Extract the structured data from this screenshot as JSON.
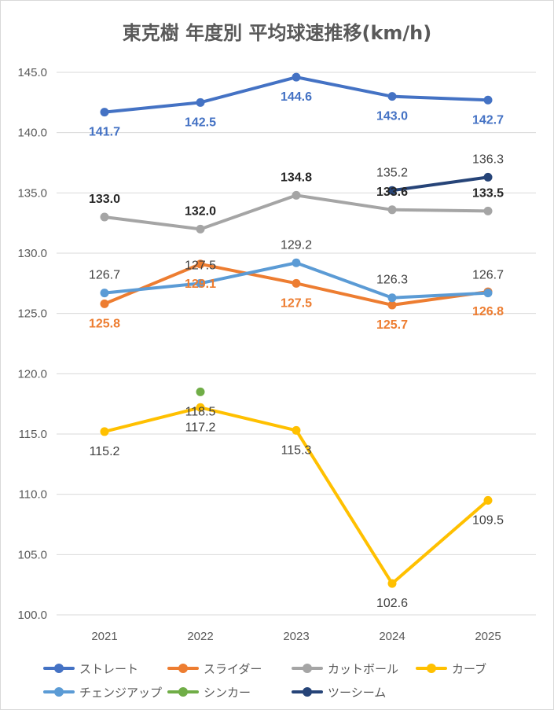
{
  "chart_data": {
    "type": "line",
    "title": "東克樹 年度別 平均球速推移(km/h)",
    "xlabel": "",
    "ylabel": "",
    "categories": [
      "2021",
      "2022",
      "2023",
      "2024",
      "2025"
    ],
    "ylim": [
      100.0,
      145.0
    ],
    "yticks": [
      "100.0",
      "105.0",
      "110.0",
      "115.0",
      "120.0",
      "125.0",
      "130.0",
      "135.0",
      "140.0",
      "145.0"
    ],
    "grid": true,
    "legend_position": "bottom",
    "series": [
      {
        "name": "ストレート",
        "color": "#4472c4",
        "label_color": "#4472c4",
        "label_pos": "below",
        "bold": true,
        "values": [
          141.7,
          142.5,
          144.6,
          143.0,
          142.7
        ]
      },
      {
        "name": "スライダー",
        "color": "#ed7d31",
        "label_color": "#ed7d31",
        "label_pos": "below",
        "bold": true,
        "values": [
          125.8,
          129.1,
          127.5,
          125.7,
          126.8
        ]
      },
      {
        "name": "カットボール",
        "color": "#a5a5a5",
        "label_color": "#262626",
        "label_pos": "above",
        "bold": true,
        "values": [
          133.0,
          132.0,
          134.8,
          133.6,
          133.5
        ]
      },
      {
        "name": "カーブ",
        "color": "#ffc000",
        "label_color": "#404040",
        "label_pos": "below",
        "bold": false,
        "values": [
          115.2,
          117.2,
          115.3,
          102.6,
          109.5
        ]
      },
      {
        "name": "チェンジアップ",
        "color": "#5b9bd5",
        "label_color": "#404040",
        "label_pos": "above",
        "bold": false,
        "values": [
          126.7,
          127.5,
          129.2,
          126.3,
          126.7
        ]
      },
      {
        "name": "シンカー",
        "color": "#70ad47",
        "label_color": "#404040",
        "label_pos": "below",
        "bold": false,
        "values": [
          null,
          118.5,
          null,
          null,
          null
        ]
      },
      {
        "name": "ツーシーム",
        "color": "#264478",
        "label_color": "#404040",
        "label_pos": "above",
        "bold": false,
        "values": [
          null,
          null,
          null,
          135.2,
          136.3
        ]
      }
    ]
  }
}
